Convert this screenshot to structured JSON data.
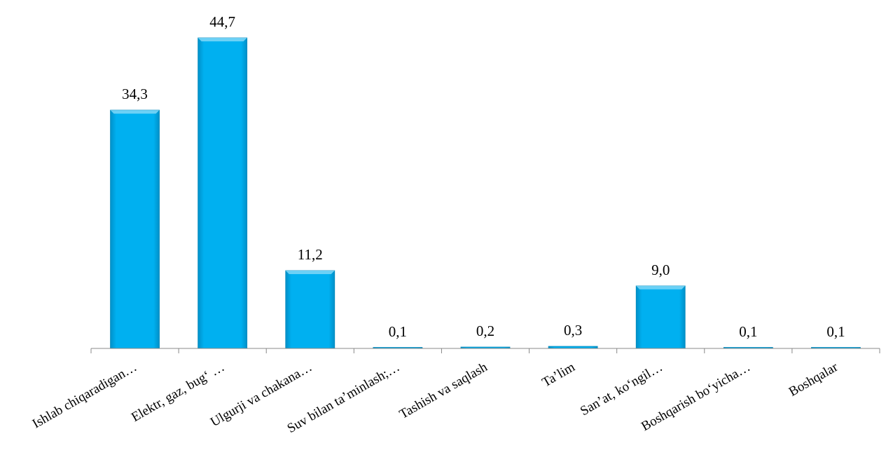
{
  "chart_data": {
    "type": "bar",
    "categories": [
      "Ishlab chiqaradigan…",
      "Elektr,  gaz, bug‘ …",
      "Ulgurji va chakana…",
      "Suv bilan ta’minlash;…",
      "Tashish va saqlash",
      "Ta’lim",
      "San’at, ko‘ngil…",
      "Boshqarish bo‘yicha…",
      "Boshqalar"
    ],
    "values": [
      34.3,
      44.7,
      11.2,
      0.1,
      0.2,
      0.3,
      9.0,
      0.1,
      0.1
    ],
    "value_labels": [
      "34,3",
      "44,7",
      "11,2",
      "0,1",
      "0,2",
      "0,3",
      "9,0",
      "0,1",
      "0,1"
    ],
    "bar_color": "#00B0F0",
    "axis_color": "#888888",
    "ylim": [
      0,
      44.7
    ],
    "grid": false,
    "legend": "none"
  }
}
